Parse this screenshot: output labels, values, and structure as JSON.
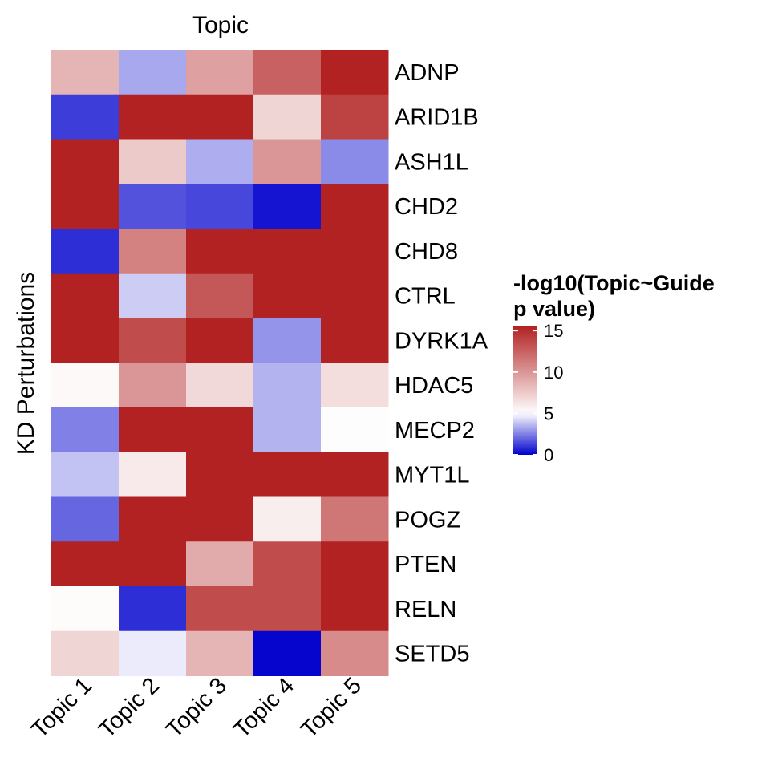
{
  "chart_data": {
    "type": "heatmap",
    "title": "Topic",
    "xlabel": "",
    "ylabel": "KD Perturbations",
    "columns": [
      "Topic 1",
      "Topic 2",
      "Topic 3",
      "Topic 4",
      "Topic 5"
    ],
    "rows": [
      "ADNP",
      "ARID1B",
      "ASH1L",
      "CHD2",
      "CHD8",
      "CTRL",
      "DYRK1A",
      "HDAC5",
      "MECP2",
      "MYT1L",
      "POGZ",
      "PTEN",
      "RELN",
      "SETD5"
    ],
    "values": [
      [
        8.5,
        3.3,
        9.5,
        12.5,
        15.5
      ],
      [
        1.2,
        15.5,
        15.5,
        7.0,
        14.0
      ],
      [
        15.5,
        7.5,
        3.4,
        10.0,
        2.7
      ],
      [
        15.5,
        1.6,
        1.4,
        0.4,
        15.5
      ],
      [
        0.9,
        11.0,
        15.5,
        15.5,
        15.5
      ],
      [
        15.5,
        4.0,
        13.0,
        15.5,
        15.5
      ],
      [
        15.5,
        13.5,
        15.5,
        2.9,
        15.5
      ],
      [
        5.3,
        10.0,
        6.8,
        3.5,
        6.6
      ],
      [
        2.5,
        15.5,
        15.5,
        3.5,
        5.1
      ],
      [
        3.8,
        6.0,
        15.5,
        15.5,
        15.5
      ],
      [
        2.0,
        15.5,
        15.5,
        5.8,
        11.5
      ],
      [
        15.5,
        15.5,
        9.0,
        13.5,
        15.5
      ],
      [
        5.2,
        0.9,
        13.5,
        13.5,
        15.5
      ],
      [
        7.0,
        4.6,
        8.5,
        0.1,
        10.5
      ]
    ],
    "legend": {
      "title_lines": [
        "-log10(Topic~Guide",
        "p value)"
      ],
      "ticks": [
        0,
        5,
        10,
        15
      ],
      "range": [
        0,
        15.5
      ],
      "placement": "right",
      "colors": {
        "low": "#0000CD",
        "mid": "#FFFFFF",
        "high": "#B22222"
      },
      "midpoint": 5
    }
  }
}
